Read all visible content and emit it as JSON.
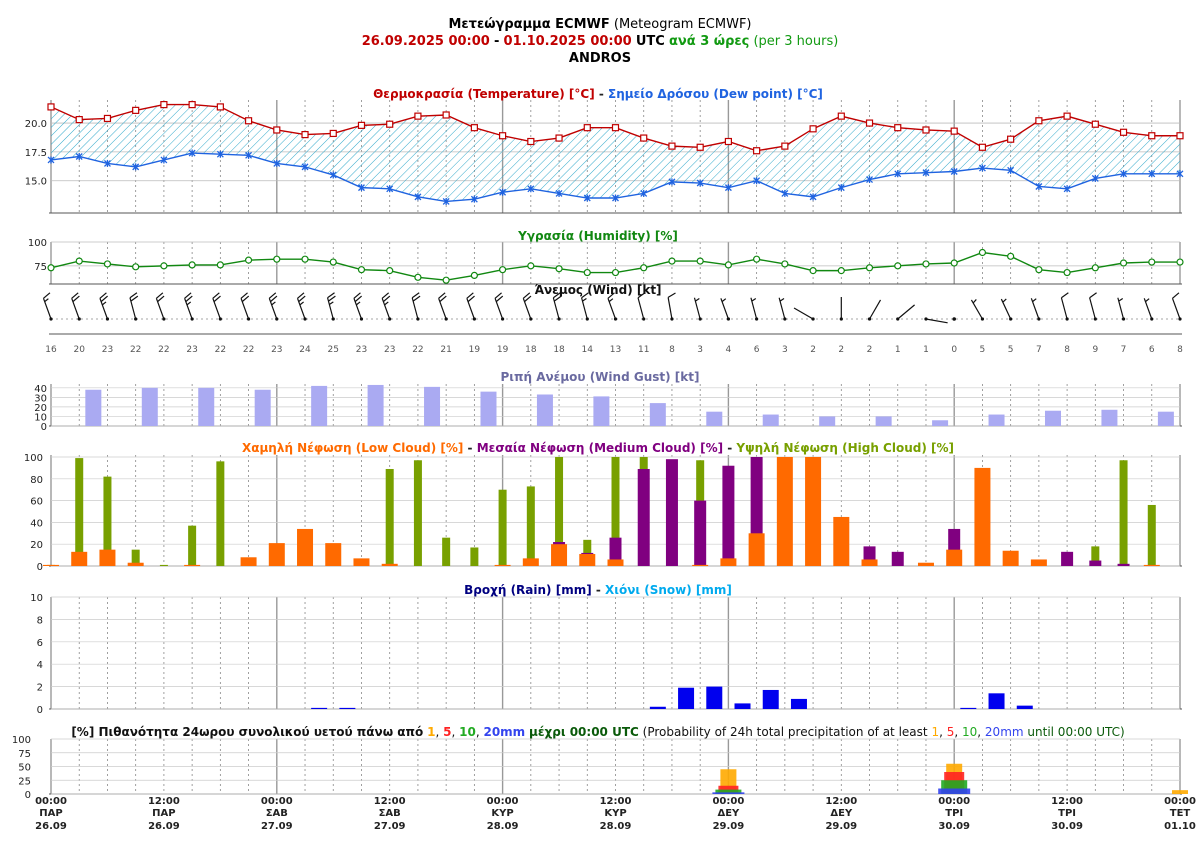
{
  "header": {
    "title_gr": "Μετεώγραμμα ECMWF",
    "title_en": "(Meteogram ECMWF)",
    "date_start": "26.09.2025 00:00",
    "date_sep": "-",
    "date_end": "01.10.2025 00:00",
    "utc": "UTC",
    "step_gr": "ανά 3 ώρες",
    "step_en": "(per 3 hours)",
    "location": "ANDROS"
  },
  "colors": {
    "temperature": "#c00000",
    "dew_point": "#1f63e0",
    "hatch": "#33aacc",
    "humidity": "#118811",
    "gust": "#aaaaf2",
    "low_cloud": "#ff6a00",
    "medium_cloud": "#800080",
    "high_cloud": "#78a000",
    "rain": "#0000ee",
    "snow": "#00aaee",
    "p1": "#ffaa00",
    "p5": "#ff2222",
    "p10": "#22aa22",
    "p20": "#3344ee"
  },
  "panels": {
    "temp": {
      "title_a": "Θερμοκρασία (Temperature) [°C]",
      "sep": " - ",
      "title_b": "Σημείο Δρόσου (Dew point) [°C]"
    },
    "humidity": {
      "title": "Υγρασία (Humidity) [%]"
    },
    "wind": {
      "title": "Άνεμος (Wind) [kt]"
    },
    "gust": {
      "title": "Ριπή Ανέμου (Wind Gust) [kt]"
    },
    "cloud": {
      "title_low": "Χαμηλή Νέφωση (Low Cloud) [%]",
      "title_med": "Μεσαία Νέφωση (Medium Cloud) [%]",
      "title_high": "Υψηλή Νέφωση (High Cloud) [%]",
      "sep": " - "
    },
    "rain": {
      "title_rain": "Βροχή (Rain) [mm]",
      "sep": " - ",
      "title_snow": "Χιόνι (Snow) [mm]"
    },
    "prob": {
      "t1": "[%] Πιθανότητα 24ωρου συνολικού υετού πάνω από",
      "n1": "1",
      "n5": "5",
      "n10": "10",
      "n20": "20mm",
      "t2": "μέχρι 00:00 UTC",
      "t3": "(Probability of 24h total precipitation of at least",
      "t4": "until 00:00 UTC)"
    }
  },
  "chart_data": [
    {
      "type": "line",
      "name": "temperature_dewpoint",
      "x": [
        "26.09 00:00",
        "26.09 03:00",
        "26.09 06:00",
        "26.09 09:00",
        "26.09 12:00",
        "26.09 15:00",
        "26.09 18:00",
        "26.09 21:00",
        "27.09 00:00",
        "27.09 03:00",
        "27.09 06:00",
        "27.09 09:00",
        "27.09 12:00",
        "27.09 15:00",
        "27.09 18:00",
        "27.09 21:00",
        "28.09 00:00",
        "28.09 03:00",
        "28.09 06:00",
        "28.09 09:00",
        "28.09 12:00",
        "28.09 15:00",
        "28.09 18:00",
        "28.09 21:00",
        "29.09 00:00",
        "29.09 03:00",
        "29.09 06:00",
        "29.09 09:00",
        "29.09 12:00",
        "29.09 15:00",
        "29.09 18:00",
        "29.09 21:00",
        "30.09 00:00",
        "30.09 03:00",
        "30.09 06:00",
        "30.09 09:00",
        "30.09 12:00",
        "30.09 15:00",
        "30.09 18:00",
        "30.09 21:00",
        "01.10 00:00"
      ],
      "series": [
        {
          "name": "Θερμοκρασία (Temperature) [°C]",
          "values": [
            21.4,
            20.3,
            20.4,
            21.1,
            21.6,
            21.6,
            21.4,
            20.2,
            19.4,
            19.0,
            19.1,
            19.8,
            19.9,
            20.6,
            20.7,
            19.6,
            18.9,
            18.4,
            18.7,
            19.6,
            19.6,
            18.7,
            18.0,
            17.9,
            18.4,
            17.6,
            18.0,
            19.5,
            20.6,
            20.0,
            19.6,
            19.4,
            19.3,
            17.9,
            18.6,
            20.2,
            20.6,
            19.9,
            19.2,
            18.9,
            18.9
          ]
        },
        {
          "name": "Σημείο Δρόσου (Dew point) [°C]",
          "values": [
            16.8,
            17.1,
            16.5,
            16.2,
            16.8,
            17.4,
            17.3,
            17.2,
            16.5,
            16.2,
            15.5,
            14.4,
            14.3,
            13.6,
            13.2,
            13.4,
            14.0,
            14.3,
            13.9,
            13.5,
            13.5,
            13.9,
            14.9,
            14.8,
            14.4,
            15.0,
            13.9,
            13.6,
            14.4,
            15.1,
            15.6,
            15.7,
            15.8,
            16.1,
            15.9,
            14.5,
            14.3,
            15.2,
            15.6,
            15.6,
            15.6
          ]
        }
      ],
      "yticks": [
        "15.0",
        "17.5",
        "20.0"
      ],
      "ylim": [
        12.2,
        22.0
      ]
    },
    {
      "type": "line",
      "name": "humidity",
      "series": [
        {
          "name": "Υγρασία (Humidity) [%]",
          "values": [
            73,
            80,
            77,
            74,
            75,
            76,
            76,
            81,
            82,
            82,
            79,
            71,
            70,
            63,
            60,
            65,
            71,
            75,
            72,
            68,
            68,
            73,
            80,
            80,
            76,
            82,
            77,
            70,
            70,
            73,
            75,
            77,
            78,
            89,
            85,
            71,
            68,
            73,
            78,
            79,
            79
          ]
        }
      ],
      "yticks": [
        "75",
        "100"
      ],
      "ylim": [
        56,
        100
      ]
    },
    {
      "type": "table",
      "name": "wind",
      "values": [
        16,
        20,
        23,
        22,
        22,
        23,
        22,
        22,
        23,
        24,
        25,
        23,
        23,
        22,
        21,
        19,
        19,
        18,
        18,
        14,
        13,
        11,
        8,
        3,
        4,
        6,
        3,
        2,
        2,
        2,
        1,
        1,
        0,
        5,
        5,
        7,
        8,
        9,
        7,
        6,
        8
      ],
      "direction_deg": [
        340,
        340,
        340,
        345,
        340,
        340,
        340,
        340,
        340,
        340,
        345,
        340,
        340,
        345,
        340,
        340,
        340,
        340,
        345,
        345,
        340,
        345,
        350,
        345,
        340,
        345,
        345,
        300,
        0,
        30,
        50,
        100,
        180,
        330,
        335,
        340,
        345,
        345,
        345,
        340,
        340
      ]
    },
    {
      "type": "bar",
      "name": "wind_gust",
      "values": [
        null,
        38,
        null,
        40,
        null,
        40,
        null,
        38,
        null,
        42,
        null,
        43,
        null,
        41,
        null,
        36,
        null,
        33,
        null,
        31,
        null,
        24,
        null,
        15,
        null,
        12,
        null,
        10,
        null,
        10,
        null,
        6,
        null,
        12,
        null,
        16,
        null,
        17,
        null,
        15
      ],
      "yticks": [
        "0",
        "10",
        "20",
        "30",
        "40"
      ],
      "ylim": [
        0,
        44
      ]
    },
    {
      "type": "bar",
      "name": "clouds",
      "series": [
        {
          "name": "Χαμηλή Νέφωση (Low Cloud) [%]",
          "values": [
            1,
            13,
            15,
            3,
            null,
            1,
            null,
            8,
            21,
            34,
            21,
            7,
            2,
            null,
            null,
            null,
            1,
            7,
            20,
            11,
            6,
            null,
            null,
            1,
            7,
            30,
            100,
            100,
            45,
            6,
            null,
            3,
            15,
            90,
            14,
            6,
            null,
            null,
            null,
            1,
            null
          ]
        },
        {
          "name": "Μεσαία Νέφωση (Medium Cloud) [%]",
          "values": [
            null,
            null,
            null,
            null,
            null,
            null,
            null,
            null,
            null,
            null,
            null,
            null,
            null,
            null,
            null,
            null,
            null,
            null,
            22,
            12,
            26,
            89,
            98,
            60,
            92,
            100,
            100,
            null,
            null,
            18,
            13,
            null,
            34,
            null,
            null,
            null,
            13,
            5,
            2,
            null,
            null
          ]
        },
        {
          "name": "Υψηλή Νέφωση (High Cloud) [%]",
          "values": [
            1,
            99,
            82,
            15,
            1,
            37,
            96,
            null,
            null,
            null,
            null,
            null,
            89,
            97,
            26,
            17,
            70,
            73,
            100,
            24,
            100,
            100,
            null,
            97,
            null,
            null,
            null,
            null,
            null,
            null,
            null,
            null,
            null,
            null,
            null,
            null,
            null,
            18,
            97,
            56,
            null
          ]
        }
      ],
      "yticks": [
        "0",
        "20",
        "40",
        "60",
        "80",
        "100"
      ],
      "ylim": [
        0,
        100
      ]
    },
    {
      "type": "bar",
      "name": "rain_snow",
      "series": [
        {
          "name": "Βροχή (Rain) [mm]",
          "values": [
            0,
            0,
            0,
            0,
            0,
            0,
            0,
            0,
            0,
            0.1,
            0.1,
            0,
            0,
            0,
            0,
            0,
            0,
            0,
            0,
            0,
            0,
            0.2,
            1.9,
            2.0,
            0.5,
            1.7,
            0.9,
            0,
            0,
            0,
            0,
            0,
            0.1,
            1.4,
            0.3,
            0,
            0,
            0,
            0,
            0,
            0
          ]
        },
        {
          "name": "Χιόνι (Snow) [mm]",
          "values": []
        }
      ],
      "yticks": [
        "0",
        "2",
        "4",
        "6",
        "8",
        "10"
      ],
      "ylim": [
        0,
        10
      ]
    },
    {
      "type": "bar",
      "name": "precip_probability",
      "days": [
        "29.09 00:00",
        "30.09 00:00",
        "01.10 00:00"
      ],
      "series": [
        {
          "name": "1",
          "values": [
            45,
            55,
            7
          ]
        },
        {
          "name": "5",
          "values": [
            15,
            40,
            0
          ]
        },
        {
          "name": "10",
          "values": [
            8,
            25,
            0
          ]
        },
        {
          "name": "20mm",
          "values": [
            3,
            10,
            0
          ]
        }
      ],
      "yticks": [
        "0",
        "25",
        "50",
        "75",
        "100"
      ],
      "ylim": [
        0,
        100
      ]
    }
  ],
  "x_axis": [
    {
      "time": "00:00",
      "day": "ΠΑΡ",
      "date": "26.09"
    },
    {
      "time": "12:00",
      "day": "ΠΑΡ",
      "date": "26.09"
    },
    {
      "time": "00:00",
      "day": "ΣΑΒ",
      "date": "27.09"
    },
    {
      "time": "12:00",
      "day": "ΣΑΒ",
      "date": "27.09"
    },
    {
      "time": "00:00",
      "day": "ΚΥΡ",
      "date": "28.09"
    },
    {
      "time": "12:00",
      "day": "ΚΥΡ",
      "date": "28.09"
    },
    {
      "time": "00:00",
      "day": "ΔΕΥ",
      "date": "29.09"
    },
    {
      "time": "12:00",
      "day": "ΔΕΥ",
      "date": "29.09"
    },
    {
      "time": "00:00",
      "day": "ΤΡΙ",
      "date": "30.09"
    },
    {
      "time": "12:00",
      "day": "ΤΡΙ",
      "date": "30.09"
    },
    {
      "time": "00:00",
      "day": "ΤΕΤ",
      "date": "01.10"
    }
  ]
}
